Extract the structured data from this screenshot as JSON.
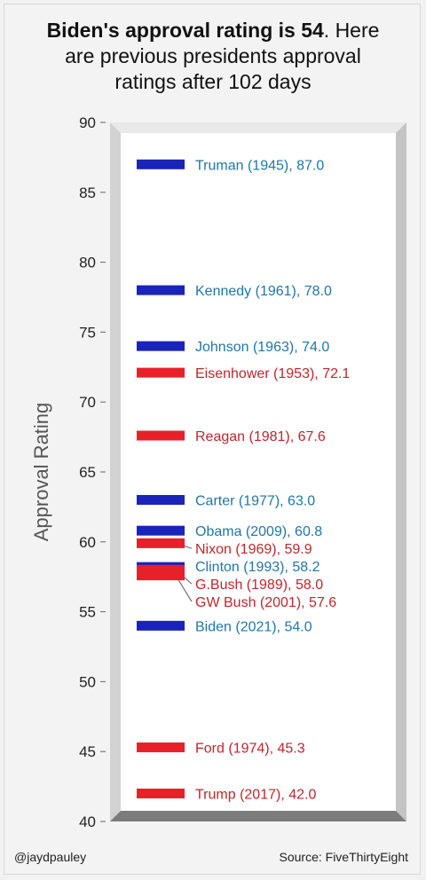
{
  "title": {
    "bold": "Biden's approval rating is 54",
    "rest_line1": ". Here",
    "line2": "are previous presidents approval",
    "line3": "ratings after 102 days"
  },
  "footer": {
    "credit": "@jaydpauley",
    "source": "Source: FiveThirtyEight"
  },
  "colors": {
    "democrat": "#1a24b8",
    "republican": "#e8202a",
    "democrat_text": "#1f76a8",
    "republican_text": "#c0262c",
    "connector": "#7a7a7a"
  },
  "chart_data": {
    "type": "bar",
    "ylabel": "Approval Rating",
    "ylim": [
      40,
      90
    ],
    "yticks": [
      40,
      45,
      50,
      55,
      60,
      65,
      70,
      75,
      80,
      85,
      90
    ],
    "points": [
      {
        "label": "Truman (1945), 87.0",
        "value": 87.0,
        "party": "D"
      },
      {
        "label": "Kennedy (1961), 78.0",
        "value": 78.0,
        "party": "D"
      },
      {
        "label": "Johnson (1963), 74.0",
        "value": 74.0,
        "party": "D"
      },
      {
        "label": "Eisenhower (1953), 72.1",
        "value": 72.1,
        "party": "R"
      },
      {
        "label": "Reagan (1981), 67.6",
        "value": 67.6,
        "party": "R"
      },
      {
        "label": "Carter (1977), 63.0",
        "value": 63.0,
        "party": "D"
      },
      {
        "label": "Obama (2009), 60.8",
        "value": 60.8,
        "party": "D"
      },
      {
        "label": "Nixon (1969), 59.9",
        "value": 59.9,
        "party": "R"
      },
      {
        "label": "Clinton (1993), 58.2",
        "value": 58.2,
        "party": "D"
      },
      {
        "label": "G.Bush (1989), 58.0",
        "value": 58.0,
        "party": "R"
      },
      {
        "label": "GW Bush (2001), 57.6",
        "value": 57.6,
        "party": "R"
      },
      {
        "label": "Biden (2021), 54.0",
        "value": 54.0,
        "party": "D"
      },
      {
        "label": "Ford (1974), 45.3",
        "value": 45.3,
        "party": "R"
      },
      {
        "label": "Trump (2017), 42.0",
        "value": 42.0,
        "party": "R"
      }
    ]
  }
}
